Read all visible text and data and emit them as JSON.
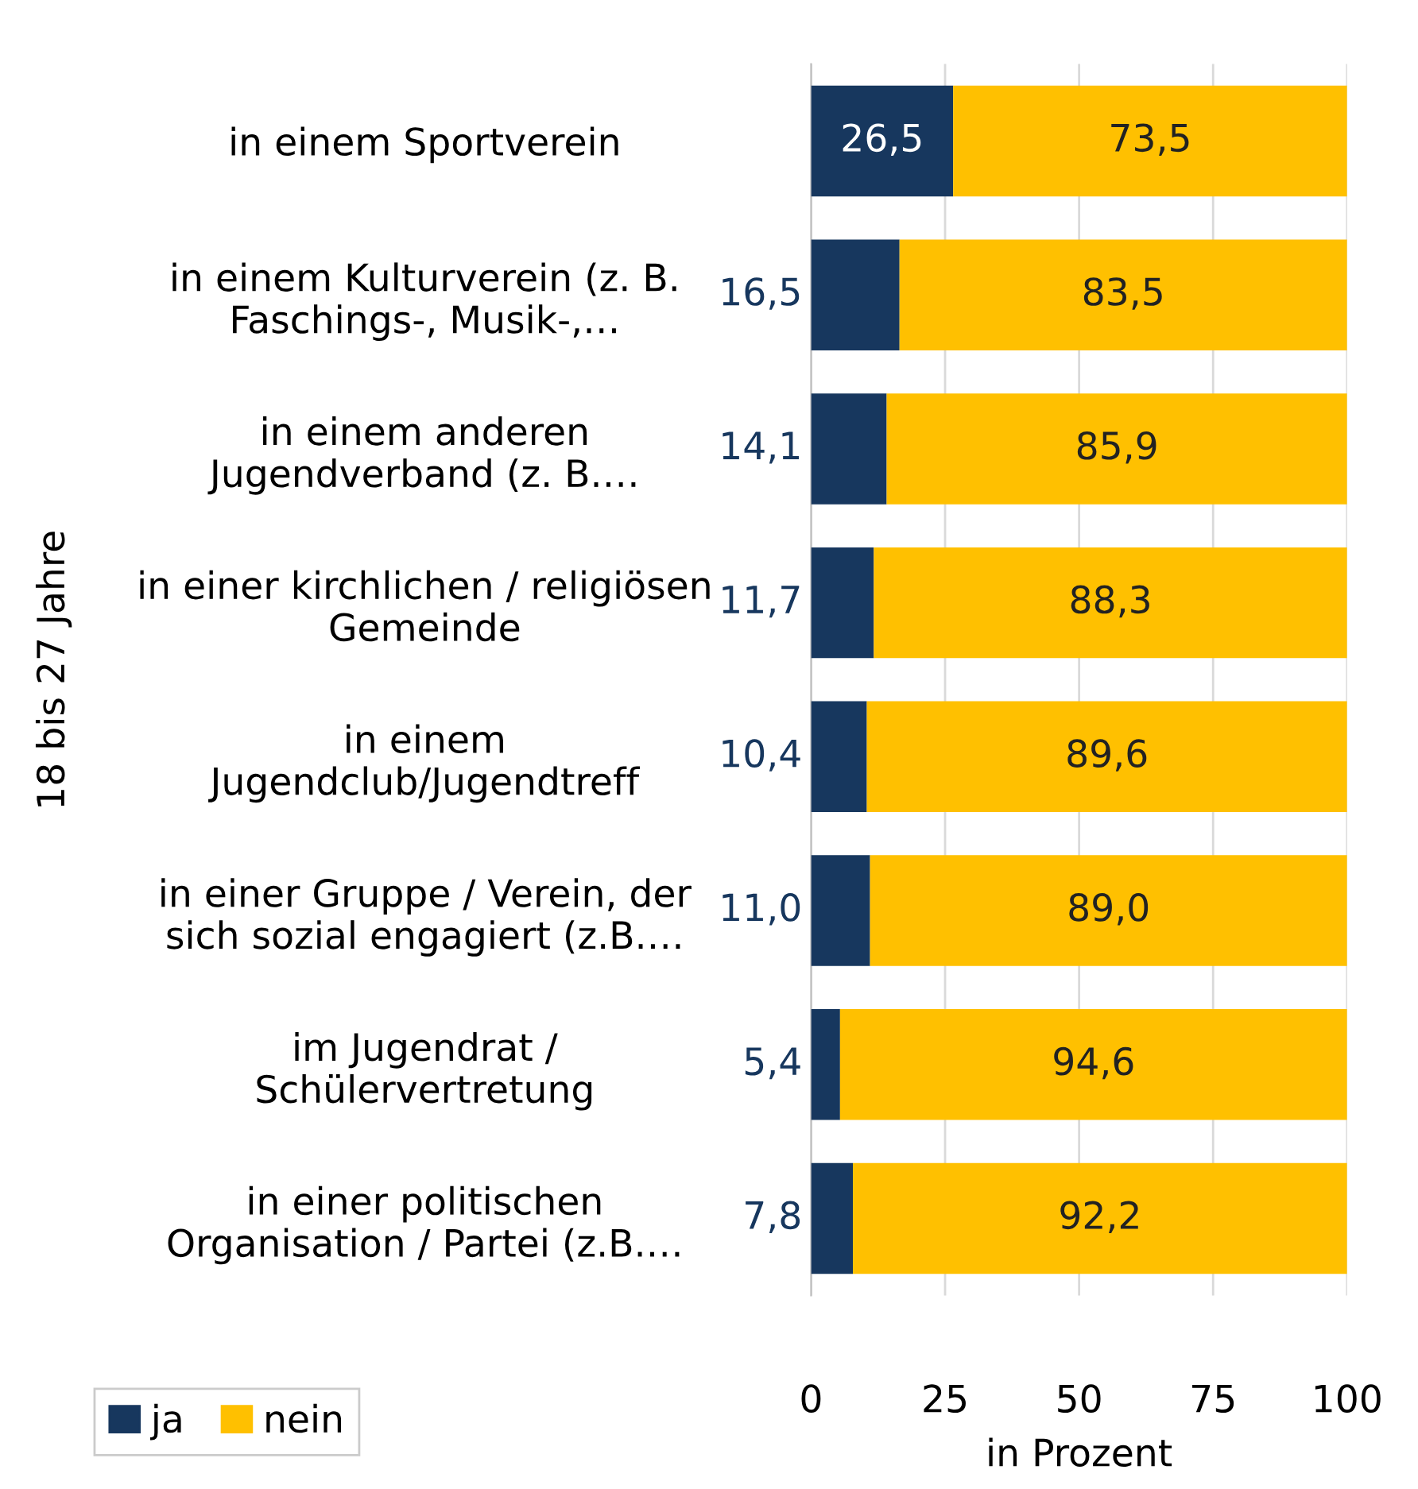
{
  "chart_data": {
    "type": "bar",
    "orientation": "horizontal",
    "stacked": true,
    "ylabel": "18 bis 27 Jahre",
    "xlabel": "in Prozent",
    "categories": [
      "in einem Sportverein",
      "in einem Kulturverein (z. B.\nFaschings-, Musik-,…",
      "in einem anderen\nJugendverband (z. B.…",
      "in einer kirchlichen / religiösen\nGemeinde",
      "in einem\nJugendclub/Jugendtreff",
      "in einer Gruppe / Verein, der\nsich sozial engagiert (z.B.…",
      "im Jugendrat /\nSchülervertretung",
      "in einer politischen\nOrganisation / Partei (z.B.…"
    ],
    "series": [
      {
        "name": "ja",
        "color": "#17375e",
        "values": [
          26.5,
          16.5,
          14.1,
          11.7,
          10.4,
          11.0,
          5.4,
          7.8
        ],
        "value_labels": [
          "26,5",
          "16,5",
          "14,1",
          "11,7",
          "10,4",
          "11,0",
          "5,4",
          "7,8"
        ]
      },
      {
        "name": "nein",
        "color": "#ffc000",
        "values": [
          73.5,
          83.5,
          85.9,
          88.3,
          89.6,
          89.0,
          94.6,
          92.2
        ],
        "value_labels": [
          "73,5",
          "83,5",
          "85,9",
          "88,3",
          "89,6",
          "89,0",
          "94,6",
          "92,2"
        ]
      }
    ],
    "xlim": [
      0,
      100
    ],
    "xticks": [
      0,
      25,
      50,
      75,
      100
    ],
    "grid": "x",
    "legend": "bottom left"
  }
}
